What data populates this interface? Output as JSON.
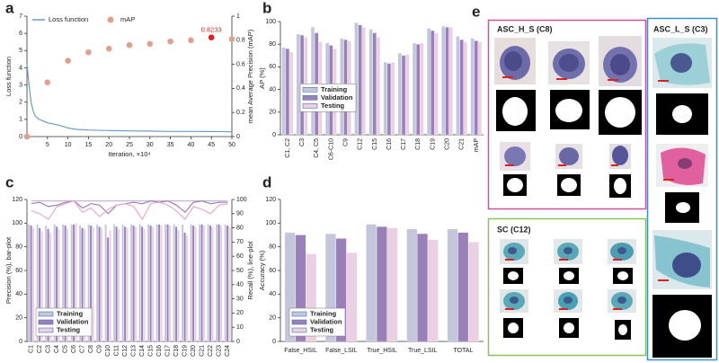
{
  "chart_data": [
    {
      "type": "line_scatter",
      "panel_label": "a",
      "x_label": "Iteration, ×10⁴",
      "y_label": "Loss function",
      "y2_label": "mean Average Precision (mAP)",
      "xlim": [
        0,
        50
      ],
      "xticks": [
        5,
        10,
        15,
        20,
        25,
        30,
        35,
        40,
        45,
        50
      ],
      "ylim": [
        0,
        7
      ],
      "yticks": [
        0,
        1,
        2,
        3,
        4,
        5,
        6,
        7
      ],
      "y2lim": [
        0,
        1
      ],
      "y2ticks": [
        0,
        0.2,
        0.4,
        0.6,
        0.8,
        1
      ],
      "legend": "upper center",
      "series": [
        {
          "name": "Loss function",
          "color": "#6c9bc9",
          "x": [
            0,
            0.5,
            1,
            1.5,
            2,
            3,
            4,
            5,
            6,
            8,
            10,
            12,
            15,
            20,
            25,
            30,
            35,
            40,
            45,
            50
          ],
          "values": [
            4.2,
            3.0,
            2.0,
            1.5,
            1.2,
            1.0,
            0.9,
            0.8,
            0.75,
            0.65,
            0.5,
            0.42,
            0.38,
            0.35,
            0.33,
            0.32,
            0.3,
            0.3,
            0.29,
            0.28
          ]
        },
        {
          "name": "mAP",
          "color": "#e0a090",
          "axis": "y2",
          "x": [
            0,
            5,
            10,
            15,
            20,
            25,
            30,
            35,
            40,
            45,
            50
          ],
          "values": [
            0,
            0.45,
            0.63,
            0.7,
            0.73,
            0.76,
            0.77,
            0.79,
            0.8,
            0.8233,
            0.81
          ],
          "colors": [
            "#e0a090",
            "#e0a090",
            "#e0a090",
            "#e0a090",
            "#e0a090",
            "#e0a090",
            "#e0a090",
            "#e0a090",
            "#e0a090",
            "#e02020",
            "#e0a090"
          ]
        }
      ]
    },
    {
      "type": "bar",
      "panel_label": "b",
      "y_label": "AP (%)",
      "ylim": [
        0,
        100
      ],
      "yticks": [
        0,
        20,
        40,
        60,
        80,
        100
      ],
      "legend": "center left",
      "categories": [
        "C1, C2",
        "C3",
        "C4, C5",
        "C6-C10",
        "C9",
        "C12",
        "C15",
        "C16",
        "C17",
        "C18",
        "C19",
        "C20",
        "C21",
        "mAP"
      ],
      "series": [
        {
          "name": "Training",
          "color": "#c4c6dc",
          "values": [
            77,
            89,
            95,
            81,
            85,
            99,
            93,
            64,
            72,
            81,
            94,
            96,
            87,
            85
          ]
        },
        {
          "name": "Validation",
          "color": "#9a80b8",
          "values": [
            76,
            88,
            90,
            79,
            84,
            97,
            90,
            63,
            70,
            80,
            92,
            95,
            84,
            83
          ]
        },
        {
          "name": "Testing",
          "color": "#ead0e2",
          "values": [
            73,
            86,
            82,
            76,
            83,
            95,
            86,
            64,
            71,
            81,
            90,
            95,
            82,
            82
          ]
        }
      ]
    },
    {
      "type": "bar",
      "panel_label": "c",
      "y_label": "Precision (%), bar-plot",
      "y2_label": "Recall (%), line-plot",
      "ylim": [
        0,
        120
      ],
      "yticks": [
        0,
        20,
        40,
        60,
        80,
        100,
        120
      ],
      "y2lim": [
        0,
        100
      ],
      "y2ticks": [
        0,
        10,
        20,
        30,
        40,
        50,
        60,
        70,
        80,
        90,
        100
      ],
      "legend": "lower left",
      "categories": [
        "C1",
        "C2",
        "C3",
        "C4",
        "C5",
        "C6",
        "C7",
        "C8",
        "C9",
        "C10",
        "C11",
        "C12",
        "C13",
        "C14",
        "C15",
        "C16",
        "C17",
        "C18",
        "C19",
        "C20",
        "C21",
        "C22",
        "C23",
        "C24"
      ],
      "series": [
        {
          "name": "Training",
          "color": "#c4c6dc",
          "line_color": "#c8b4e0",
          "values": [
            99,
            99,
            98,
            99,
            99,
            99,
            98,
            99,
            99,
            99,
            99,
            99,
            99,
            99,
            99,
            99,
            99,
            99,
            99,
            99,
            99,
            99,
            99,
            99
          ],
          "recall_values": [
            99,
            99,
            99,
            99,
            99,
            99,
            99,
            99,
            99,
            99,
            99,
            99,
            99,
            99,
            99,
            99,
            99,
            99,
            99,
            99,
            99,
            99,
            99,
            99
          ]
        },
        {
          "name": "Validation",
          "color": "#9a80b8",
          "line_color": "#9a80b8",
          "values": [
            98,
            96,
            95,
            97,
            98,
            99,
            96,
            98,
            97,
            88,
            97,
            97,
            98,
            97,
            98,
            99,
            99,
            97,
            92,
            98,
            99,
            98,
            99,
            98
          ],
          "recall_values": [
            97,
            98,
            95,
            96,
            98,
            99,
            94,
            97,
            96,
            90,
            96,
            97,
            98,
            97,
            99,
            98,
            99,
            96,
            91,
            98,
            99,
            97,
            98,
            98
          ]
        },
        {
          "name": "Testing",
          "color": "#ead0e2",
          "line_color": "#eaa8cc",
          "values": [
            96,
            93,
            92,
            95,
            96,
            100,
            95,
            97,
            96,
            94,
            95,
            96,
            97,
            95,
            97,
            98,
            98,
            94,
            90,
            97,
            98,
            97,
            98,
            97
          ],
          "recall_values": [
            92,
            90,
            86,
            95,
            97,
            99,
            91,
            94,
            88,
            93,
            96,
            97,
            95,
            86,
            97,
            98,
            96,
            92,
            86,
            95,
            93,
            90,
            96,
            97
          ]
        }
      ]
    },
    {
      "type": "bar",
      "panel_label": "d",
      "y_label": "Accuracy (%)",
      "ylim": [
        0,
        120
      ],
      "yticks": [
        0,
        20,
        40,
        60,
        80,
        100,
        120
      ],
      "legend": "lower left",
      "categories": [
        "False_HSIL",
        "False_LSIL",
        "True_HSIL",
        "True_LSIL",
        "TOTAL"
      ],
      "series": [
        {
          "name": "Training",
          "color": "#c4c6dc",
          "values": [
            92,
            91,
            99,
            95,
            95
          ]
        },
        {
          "name": "Validation",
          "color": "#9a80b8",
          "values": [
            90,
            87,
            97,
            91,
            92
          ]
        },
        {
          "name": "Testing",
          "color": "#ead0e2",
          "values": [
            74,
            75,
            96,
            86,
            84
          ]
        }
      ]
    }
  ],
  "figure_e": {
    "panel_label": "e",
    "groups": [
      {
        "title": "ASC_H_S (C8)"
      },
      {
        "title": "SC (C12)"
      },
      {
        "title": "ASC_L_S (C3)"
      }
    ]
  }
}
